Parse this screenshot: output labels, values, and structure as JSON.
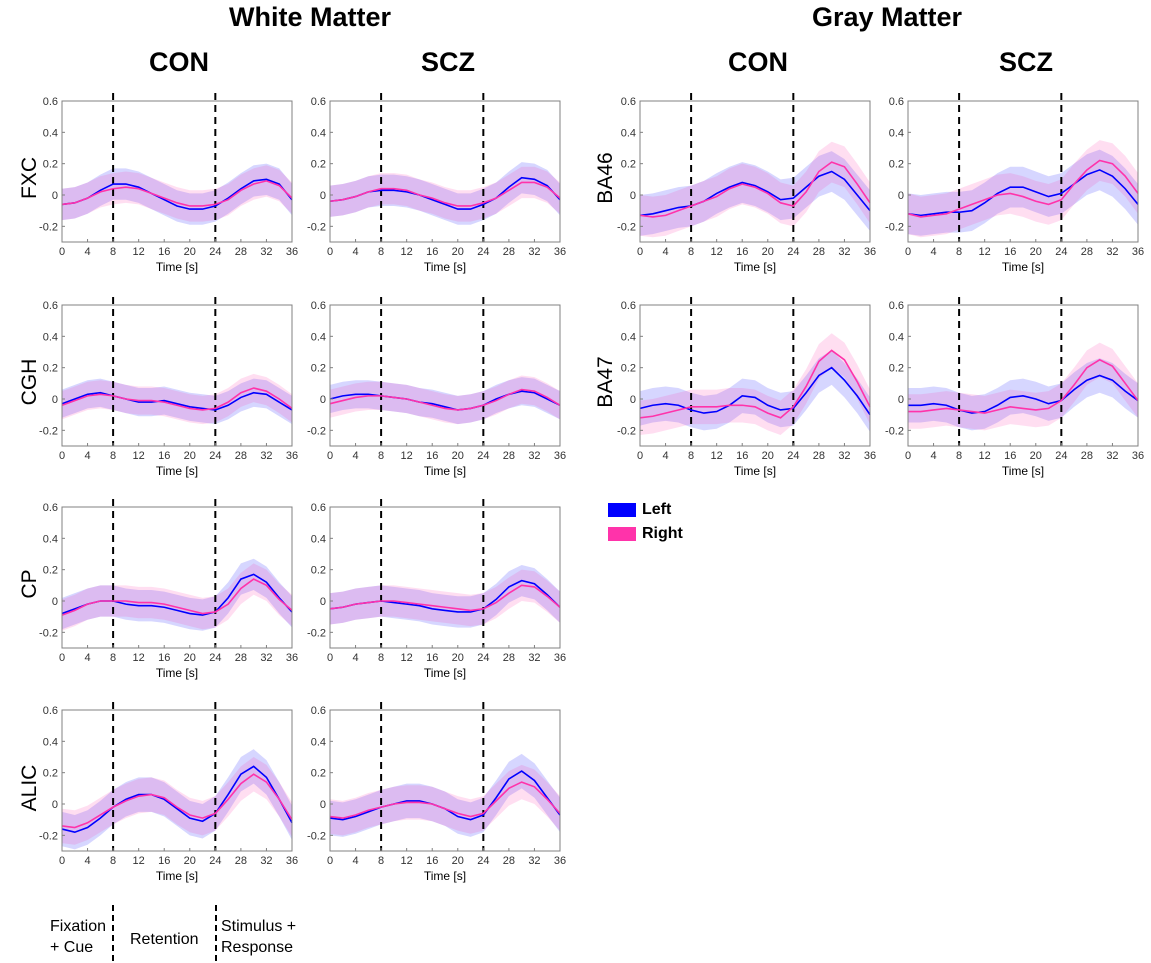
{
  "titles": {
    "white_matter": "White Matter",
    "gray_matter": "Gray Matter",
    "con_label": "CON",
    "scz_label": "SCZ"
  },
  "legend": {
    "left_label": "Left",
    "right_label": "Right",
    "left_color": "#0000ff",
    "right_color": "#ff33aa"
  },
  "phases": {
    "fixation_line1": "Fixation",
    "fixation_line2": "+ Cue",
    "retention": "Retention",
    "stimulus_line1": "Stimulus +",
    "stimulus_line2": "Response"
  },
  "chart_data": {
    "type": "line",
    "x": [
      0,
      2,
      4,
      6,
      8,
      10,
      12,
      14,
      16,
      18,
      20,
      22,
      24,
      26,
      28,
      30,
      32,
      34,
      36
    ],
    "xticks": [
      0,
      4,
      8,
      12,
      16,
      20,
      24,
      28,
      32,
      36
    ],
    "yticks": [
      -0.2,
      0,
      0.2,
      0.4,
      0.6
    ],
    "xlim": [
      0,
      36
    ],
    "ylim": [
      -0.3,
      0.6
    ],
    "xlabel": "Time [s]",
    "vlines": [
      8,
      24
    ],
    "grid": false,
    "series_names": [
      "Left",
      "Right"
    ],
    "panels": [
      {
        "id": "wm-con-fxc",
        "region": "White Matter",
        "group": "CON",
        "row_label": "FXC",
        "left": [
          -0.06,
          -0.05,
          -0.02,
          0.03,
          0.07,
          0.07,
          0.05,
          0.01,
          -0.03,
          -0.07,
          -0.09,
          -0.09,
          -0.07,
          -0.02,
          0.04,
          0.09,
          0.1,
          0.07,
          -0.03
        ],
        "right": [
          -0.06,
          -0.05,
          -0.02,
          0.02,
          0.04,
          0.05,
          0.04,
          0.01,
          -0.02,
          -0.05,
          -0.07,
          -0.07,
          -0.06,
          -0.03,
          0.03,
          0.07,
          0.09,
          0.06,
          -0.02
        ],
        "band": 0.1
      },
      {
        "id": "wm-scz-fxc",
        "region": "White Matter",
        "group": "SCZ",
        "row_label": "FXC",
        "left": [
          -0.04,
          -0.03,
          -0.01,
          0.02,
          0.03,
          0.03,
          0.02,
          0.0,
          -0.03,
          -0.06,
          -0.09,
          -0.09,
          -0.06,
          -0.02,
          0.05,
          0.11,
          0.1,
          0.06,
          -0.03
        ],
        "right": [
          -0.04,
          -0.03,
          -0.01,
          0.02,
          0.04,
          0.04,
          0.03,
          0.0,
          -0.02,
          -0.05,
          -0.07,
          -0.07,
          -0.05,
          -0.02,
          0.03,
          0.08,
          0.08,
          0.05,
          -0.02
        ],
        "band": 0.1
      },
      {
        "id": "wm-con-cgh",
        "region": "White Matter",
        "group": "CON",
        "row_label": "CGH",
        "left": [
          -0.03,
          0.0,
          0.03,
          0.04,
          0.02,
          0.0,
          -0.02,
          -0.02,
          -0.01,
          -0.03,
          -0.05,
          -0.06,
          -0.07,
          -0.04,
          0.01,
          0.04,
          0.03,
          -0.02,
          -0.07
        ],
        "right": [
          -0.04,
          -0.01,
          0.02,
          0.03,
          0.02,
          0.0,
          -0.01,
          -0.01,
          -0.02,
          -0.04,
          -0.06,
          -0.07,
          -0.06,
          -0.02,
          0.04,
          0.07,
          0.05,
          0.0,
          -0.06
        ],
        "band": 0.09
      },
      {
        "id": "wm-scz-cgh",
        "region": "White Matter",
        "group": "SCZ",
        "row_label": "CGH",
        "left": [
          0.0,
          0.02,
          0.03,
          0.03,
          0.02,
          0.01,
          0.0,
          -0.02,
          -0.03,
          -0.05,
          -0.07,
          -0.06,
          -0.04,
          0.0,
          0.03,
          0.05,
          0.04,
          0.0,
          -0.04
        ],
        "right": [
          -0.03,
          -0.01,
          0.01,
          0.02,
          0.02,
          0.01,
          0.0,
          -0.02,
          -0.04,
          -0.06,
          -0.07,
          -0.06,
          -0.04,
          -0.01,
          0.03,
          0.06,
          0.05,
          0.01,
          -0.04
        ],
        "band": 0.09
      },
      {
        "id": "wm-con-cp",
        "region": "White Matter",
        "group": "CON",
        "row_label": "CP",
        "left": [
          -0.08,
          -0.05,
          -0.02,
          0.0,
          0.0,
          -0.02,
          -0.03,
          -0.03,
          -0.04,
          -0.06,
          -0.08,
          -0.09,
          -0.07,
          0.02,
          0.14,
          0.17,
          0.12,
          0.02,
          -0.07
        ],
        "right": [
          -0.09,
          -0.06,
          -0.02,
          0.0,
          0.0,
          0.0,
          -0.01,
          -0.01,
          -0.02,
          -0.04,
          -0.06,
          -0.08,
          -0.07,
          -0.02,
          0.08,
          0.14,
          0.1,
          0.01,
          -0.06
        ],
        "band": 0.1
      },
      {
        "id": "wm-scz-cp",
        "region": "White Matter",
        "group": "SCZ",
        "row_label": "CP",
        "left": [
          -0.05,
          -0.04,
          -0.02,
          -0.01,
          0.0,
          -0.01,
          -0.02,
          -0.03,
          -0.05,
          -0.06,
          -0.07,
          -0.07,
          -0.05,
          0.01,
          0.09,
          0.13,
          0.11,
          0.04,
          -0.04
        ],
        "right": [
          -0.05,
          -0.04,
          -0.02,
          -0.01,
          0.0,
          0.0,
          -0.01,
          -0.02,
          -0.03,
          -0.04,
          -0.05,
          -0.06,
          -0.05,
          -0.01,
          0.05,
          0.1,
          0.09,
          0.03,
          -0.04
        ],
        "band": 0.1
      },
      {
        "id": "wm-con-alic",
        "region": "White Matter",
        "group": "CON",
        "row_label": "ALIC",
        "left": [
          -0.16,
          -0.18,
          -0.15,
          -0.09,
          -0.02,
          0.03,
          0.06,
          0.06,
          0.03,
          -0.03,
          -0.09,
          -0.11,
          -0.06,
          0.06,
          0.19,
          0.24,
          0.17,
          0.03,
          -0.12
        ],
        "right": [
          -0.14,
          -0.15,
          -0.12,
          -0.07,
          -0.02,
          0.02,
          0.05,
          0.06,
          0.04,
          -0.02,
          -0.07,
          -0.09,
          -0.06,
          0.03,
          0.13,
          0.19,
          0.14,
          0.03,
          -0.1
        ],
        "band": 0.11
      },
      {
        "id": "wm-scz-alic",
        "region": "White Matter",
        "group": "SCZ",
        "row_label": "ALIC",
        "left": [
          -0.09,
          -0.1,
          -0.08,
          -0.05,
          -0.02,
          0.0,
          0.02,
          0.02,
          0.0,
          -0.03,
          -0.08,
          -0.1,
          -0.07,
          0.04,
          0.16,
          0.21,
          0.15,
          0.04,
          -0.07
        ],
        "right": [
          -0.08,
          -0.09,
          -0.07,
          -0.04,
          -0.02,
          0.0,
          0.01,
          0.01,
          0.0,
          -0.03,
          -0.06,
          -0.08,
          -0.06,
          0.02,
          0.1,
          0.14,
          0.11,
          0.03,
          -0.06
        ],
        "band": 0.11
      },
      {
        "id": "gm-con-ba46",
        "region": "Gray Matter",
        "group": "CON",
        "row_label": "BA46",
        "left": [
          -0.13,
          -0.12,
          -0.1,
          -0.08,
          -0.07,
          -0.04,
          0.01,
          0.05,
          0.08,
          0.06,
          0.02,
          -0.03,
          -0.02,
          0.05,
          0.12,
          0.15,
          0.1,
          0.0,
          -0.1
        ],
        "right": [
          -0.13,
          -0.14,
          -0.13,
          -0.1,
          -0.07,
          -0.04,
          -0.01,
          0.04,
          0.07,
          0.05,
          0.01,
          -0.05,
          -0.07,
          0.02,
          0.15,
          0.21,
          0.18,
          0.07,
          -0.05
        ],
        "band": 0.13
      },
      {
        "id": "gm-scz-ba46",
        "region": "Gray Matter",
        "group": "SCZ",
        "row_label": "BA46",
        "left": [
          -0.12,
          -0.13,
          -0.12,
          -0.11,
          -0.11,
          -0.1,
          -0.05,
          0.01,
          0.05,
          0.05,
          0.02,
          -0.01,
          0.01,
          0.07,
          0.13,
          0.16,
          0.12,
          0.04,
          -0.06
        ],
        "right": [
          -0.12,
          -0.14,
          -0.13,
          -0.12,
          -0.09,
          -0.06,
          -0.03,
          0.0,
          0.01,
          -0.01,
          -0.04,
          -0.06,
          -0.03,
          0.07,
          0.16,
          0.22,
          0.2,
          0.12,
          0.01
        ],
        "band": 0.13
      },
      {
        "id": "gm-con-ba47",
        "region": "Gray Matter",
        "group": "CON",
        "row_label": "BA47",
        "left": [
          -0.06,
          -0.04,
          -0.03,
          -0.04,
          -0.07,
          -0.09,
          -0.08,
          -0.04,
          0.02,
          0.01,
          -0.04,
          -0.07,
          -0.06,
          0.04,
          0.15,
          0.2,
          0.12,
          0.02,
          -0.1
        ],
        "right": [
          -0.12,
          -0.11,
          -0.09,
          -0.07,
          -0.05,
          -0.05,
          -0.05,
          -0.04,
          -0.04,
          -0.05,
          -0.09,
          -0.12,
          -0.05,
          0.08,
          0.24,
          0.31,
          0.25,
          0.11,
          -0.05
        ],
        "band": 0.11
      },
      {
        "id": "gm-scz-ba47",
        "region": "Gray Matter",
        "group": "SCZ",
        "row_label": "BA47",
        "left": [
          -0.04,
          -0.04,
          -0.03,
          -0.04,
          -0.07,
          -0.09,
          -0.08,
          -0.04,
          0.01,
          0.02,
          0.0,
          -0.03,
          -0.01,
          0.06,
          0.12,
          0.15,
          0.12,
          0.05,
          -0.01
        ],
        "right": [
          -0.08,
          -0.08,
          -0.07,
          -0.06,
          -0.07,
          -0.08,
          -0.09,
          -0.07,
          -0.05,
          -0.06,
          -0.07,
          -0.06,
          -0.01,
          0.09,
          0.2,
          0.25,
          0.21,
          0.1,
          -0.01
        ],
        "band": 0.11
      }
    ]
  }
}
